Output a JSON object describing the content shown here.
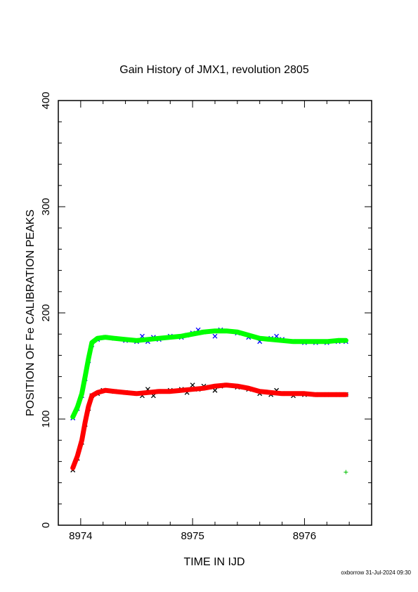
{
  "chart_data": {
    "type": "scatter",
    "title": "Gain History of JMX1, revolution 2805",
    "xlabel": "TIME IN IJD",
    "ylabel": "POSITION OF Fe CALIBRATION PEAKS",
    "xlim": [
      8973.8,
      8976.6
    ],
    "ylim": [
      0,
      400
    ],
    "x_ticks": [
      "8974",
      "8975",
      "8976"
    ],
    "x_tick_values": [
      8974,
      8975,
      8976
    ],
    "y_ticks": [
      "0",
      "100",
      "200",
      "300",
      "400"
    ],
    "y_tick_values": [
      0,
      100,
      200,
      300,
      400
    ],
    "grid": false,
    "series": [
      {
        "color": "#0000ff",
        "marker": "x",
        "x": [
          8973.93,
          8973.97,
          8974.01,
          8974.04,
          8974.07,
          8974.1,
          8974.15,
          8974.22,
          8974.3,
          8974.4,
          8974.5,
          8974.55,
          8974.6,
          8974.65,
          8974.7,
          8974.8,
          8974.9,
          8974.95,
          8975.0,
          8975.05,
          8975.1,
          8975.2,
          8975.25,
          8975.3,
          8975.4,
          8975.5,
          8975.6,
          8975.7,
          8975.75,
          8975.8,
          8975.9,
          8976.0,
          8976.1,
          8976.2,
          8976.3,
          8976.37
        ],
        "y": [
          101,
          110,
          122,
          138,
          155,
          170,
          175,
          177,
          176,
          174,
          173,
          178,
          173,
          177,
          175,
          178,
          177,
          179,
          181,
          184,
          182,
          178,
          184,
          183,
          181,
          177,
          173,
          176,
          178,
          175,
          173,
          172,
          172,
          172,
          173,
          173
        ]
      },
      {
        "color": "#00ff00",
        "marker": "line",
        "x": [
          8973.93,
          8973.97,
          8974.01,
          8974.04,
          8974.07,
          8974.1,
          8974.15,
          8974.22,
          8974.3,
          8974.4,
          8974.5,
          8974.6,
          8974.7,
          8974.8,
          8974.9,
          8975.0,
          8975.1,
          8975.2,
          8975.3,
          8975.4,
          8975.5,
          8975.6,
          8975.7,
          8975.8,
          8975.9,
          8976.0,
          8976.1,
          8976.2,
          8976.3,
          8976.37
        ],
        "y": [
          102,
          111,
          124,
          140,
          157,
          172,
          176,
          177,
          176,
          175,
          174,
          175,
          176,
          177,
          178,
          180,
          182,
          183,
          183,
          182,
          179,
          176,
          175,
          174,
          173,
          173,
          173,
          173,
          174,
          174
        ]
      },
      {
        "color": "#000000",
        "marker": "x",
        "x": [
          8973.93,
          8973.97,
          8974.01,
          8974.04,
          8974.07,
          8974.1,
          8974.15,
          8974.2,
          8974.3,
          8974.4,
          8974.5,
          8974.55,
          8974.6,
          8974.65,
          8974.7,
          8974.8,
          8974.9,
          8974.95,
          8975.0,
          8975.05,
          8975.1,
          8975.15,
          8975.2,
          8975.25,
          8975.3,
          8975.4,
          8975.5,
          8975.6,
          8975.7,
          8975.75,
          8975.8,
          8975.9,
          8976.0,
          8976.1,
          8976.2,
          8976.3,
          8976.37
        ],
        "y": [
          52,
          63,
          78,
          95,
          110,
          122,
          124,
          127,
          126,
          125,
          124,
          122,
          128,
          122,
          126,
          127,
          128,
          125,
          132,
          128,
          131,
          130,
          127,
          131,
          132,
          130,
          128,
          124,
          123,
          127,
          124,
          122,
          123,
          123,
          123,
          123,
          123
        ]
      },
      {
        "color": "#ff0000",
        "marker": "line",
        "x": [
          8973.93,
          8973.97,
          8974.01,
          8974.04,
          8974.07,
          8974.1,
          8974.15,
          8974.22,
          8974.3,
          8974.4,
          8974.5,
          8974.6,
          8974.7,
          8974.8,
          8974.9,
          8975.0,
          8975.1,
          8975.2,
          8975.3,
          8975.4,
          8975.5,
          8975.6,
          8975.7,
          8975.8,
          8975.9,
          8976.0,
          8976.1,
          8976.2,
          8976.3,
          8976.37
        ],
        "y": [
          54,
          65,
          80,
          97,
          112,
          122,
          125,
          127,
          126,
          125,
          124,
          125,
          126,
          126,
          127,
          128,
          129,
          131,
          132,
          131,
          129,
          126,
          125,
          124,
          124,
          124,
          123,
          123,
          123,
          123
        ]
      },
      {
        "color": "#00c000",
        "marker": "+",
        "x": [
          8976.37
        ],
        "y": [
          50
        ]
      }
    ]
  },
  "footer": "oxborrow 31-Jul-2024 09:30"
}
